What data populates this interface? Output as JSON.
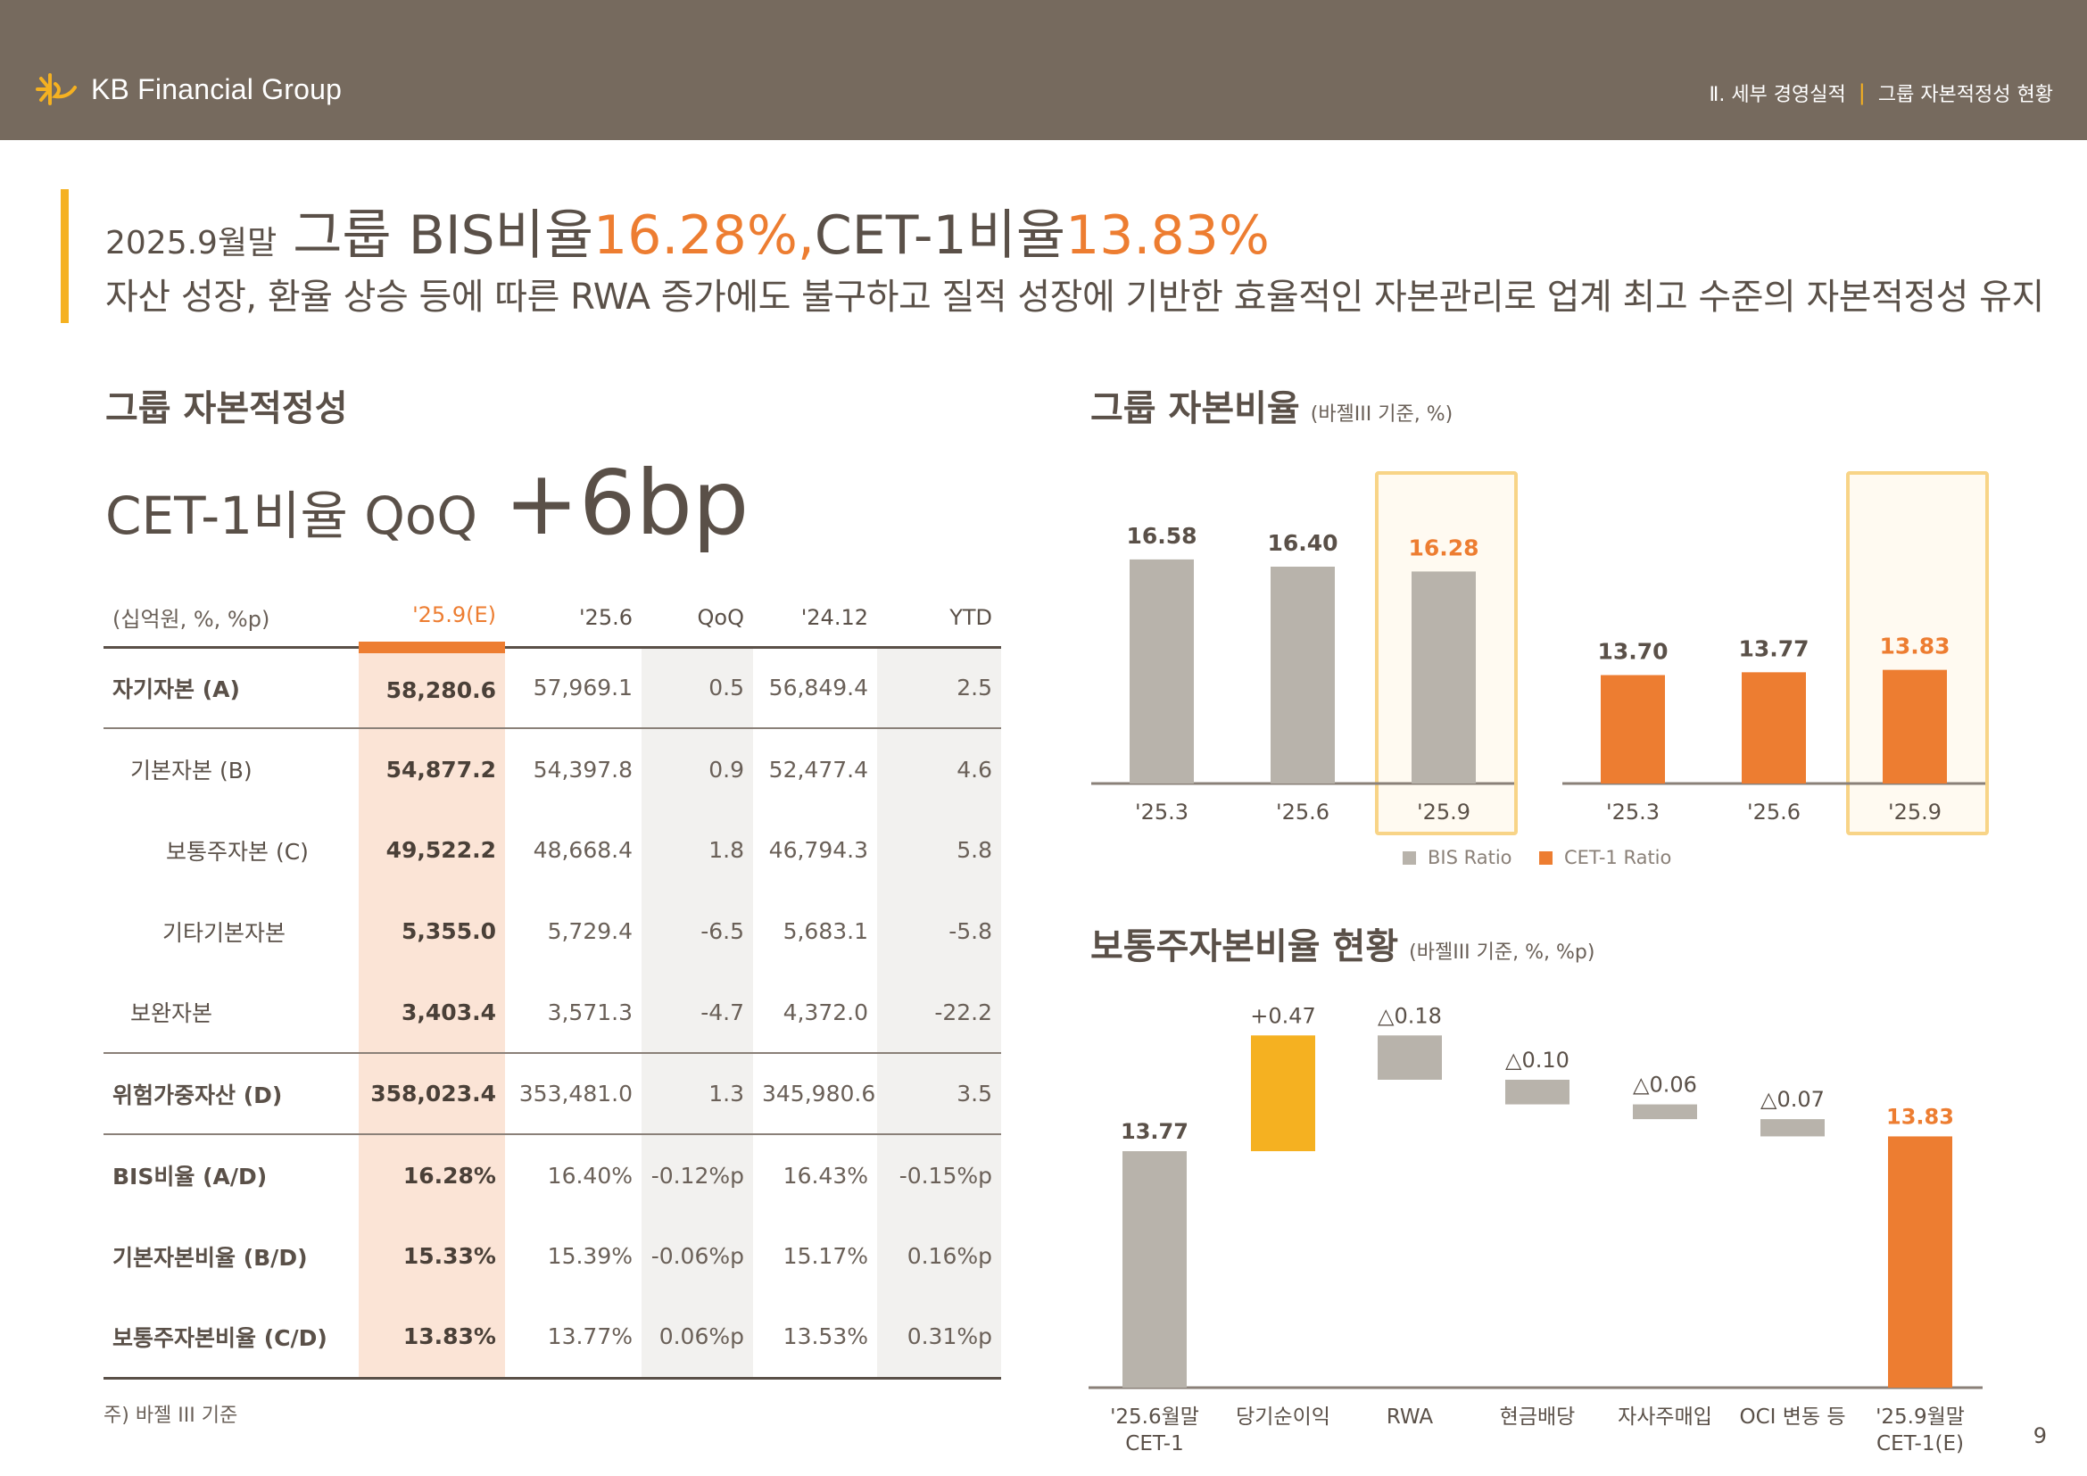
{
  "header": {
    "logo_text": "KB Financial Group",
    "breadcrumb_section": "Ⅱ. 세부 경영실적",
    "breadcrumb_page": "그룹 자본적정성 현황",
    "separator": "|"
  },
  "title": {
    "period": "2025.9월말",
    "part1": "그룹 BIS비율 ",
    "bis_value": "16.28%,",
    "part2": " CET-1비율 ",
    "cet_value": "13.83%",
    "subtitle": "자산 성장, 환율 상승 등에 따른 RWA 증가에도 불구하고 질적 성장에 기반한 효율적인 자본관리로 업계 최고 수준의 자본적정성 유지"
  },
  "left": {
    "section_title": "그룹 자본적정성",
    "cet_label": "CET-1비율 QoQ",
    "cet_change": "+6bp",
    "table": {
      "headers": [
        "(십억원, %, %p)",
        "'25.9(E)",
        "'25.6",
        "QoQ",
        "'24.12",
        "YTD"
      ],
      "rows": [
        {
          "label": "자기자본 (A)",
          "values": [
            "58,280.6",
            "57,969.1",
            "0.5",
            "56,849.4",
            "2.5"
          ]
        },
        {
          "label": "기본자본 (B)",
          "values": [
            "54,877.2",
            "54,397.8",
            "0.9",
            "52,477.4",
            "4.6"
          ]
        },
        {
          "label": "보통주자본 (C)",
          "values": [
            "49,522.2",
            "48,668.4",
            "1.8",
            "46,794.3",
            "5.8"
          ]
        },
        {
          "label": "기타기본자본",
          "values": [
            "5,355.0",
            "5,729.4",
            "-6.5",
            "5,683.1",
            "-5.8"
          ]
        },
        {
          "label": "보완자본",
          "values": [
            "3,403.4",
            "3,571.3",
            "-4.7",
            "4,372.0",
            "-22.2"
          ]
        },
        {
          "label": "위험가중자산 (D)",
          "values": [
            "358,023.4",
            "353,481.0",
            "1.3",
            "345,980.6",
            "3.5"
          ]
        },
        {
          "label": "BIS비율 (A/D)",
          "values": [
            "16.28%",
            "16.40%",
            "-0.12%p",
            "16.43%",
            "-0.15%p"
          ]
        },
        {
          "label": "기본자본비율 (B/D)",
          "values": [
            "15.33%",
            "15.39%",
            "-0.06%p",
            "15.17%",
            "0.16%p"
          ]
        },
        {
          "label": "보통주자본비율 (C/D)",
          "values": [
            "13.83%",
            "13.77%",
            "0.06%p",
            "13.53%",
            "0.31%p"
          ]
        }
      ]
    },
    "footnote": "주) 바젤 III 기준",
    "page_number": "9"
  },
  "colors": {
    "header_bg": "#766a5e",
    "accent_orange": "#ed7d31",
    "accent_yellow": "#f5b121",
    "bar_gray": "#b8b3ab",
    "highlight_fill": "#fbe4d6",
    "highlight_border": "#f8d487",
    "text_brown": "#5a5048"
  },
  "charts": {
    "ratio_title": "그룹 자본비율",
    "ratio_note": "(바젤III 기준, %)",
    "waterfall_title": "보통주자본비율 현황",
    "waterfall_note": "(바젤III 기준, %, %p)"
  },
  "chart_data": [
    {
      "type": "bar",
      "title": "그룹 자본비율",
      "categories": [
        "'25.3",
        "'25.6",
        "'25.9"
      ],
      "series": [
        {
          "name": "BIS Ratio",
          "values": [
            16.58,
            16.4,
            16.28
          ],
          "labels": [
            "16.58",
            "16.40",
            "16.28"
          ]
        },
        {
          "name": "CET-1 Ratio",
          "values": [
            13.7,
            13.77,
            13.83
          ],
          "labels": [
            "13.70",
            "13.77",
            "13.83"
          ]
        }
      ],
      "legend": [
        "BIS Ratio",
        "CET-1 Ratio"
      ],
      "highlight_category": "'25.9"
    },
    {
      "type": "bar",
      "subtype": "waterfall",
      "title": "보통주자본비율 현황",
      "steps": [
        {
          "label": "'25.6월말\nCET-1",
          "value": 13.77,
          "kind": "total",
          "text": "13.77"
        },
        {
          "label": "당기순이익",
          "value": 0.47,
          "kind": "increase",
          "text": "+0.47"
        },
        {
          "label": "RWA",
          "value": -0.18,
          "kind": "decrease",
          "text": "△0.18"
        },
        {
          "label": "현금배당",
          "value": -0.1,
          "kind": "decrease",
          "text": "△0.10"
        },
        {
          "label": "자사주매입",
          "value": -0.06,
          "kind": "decrease",
          "text": "△0.06"
        },
        {
          "label": "OCI 변동 등",
          "value": -0.07,
          "kind": "decrease",
          "text": "△0.07"
        },
        {
          "label": "'25.9월말\nCET-1(E)",
          "value": 13.83,
          "kind": "total",
          "text": "13.83"
        }
      ]
    }
  ]
}
